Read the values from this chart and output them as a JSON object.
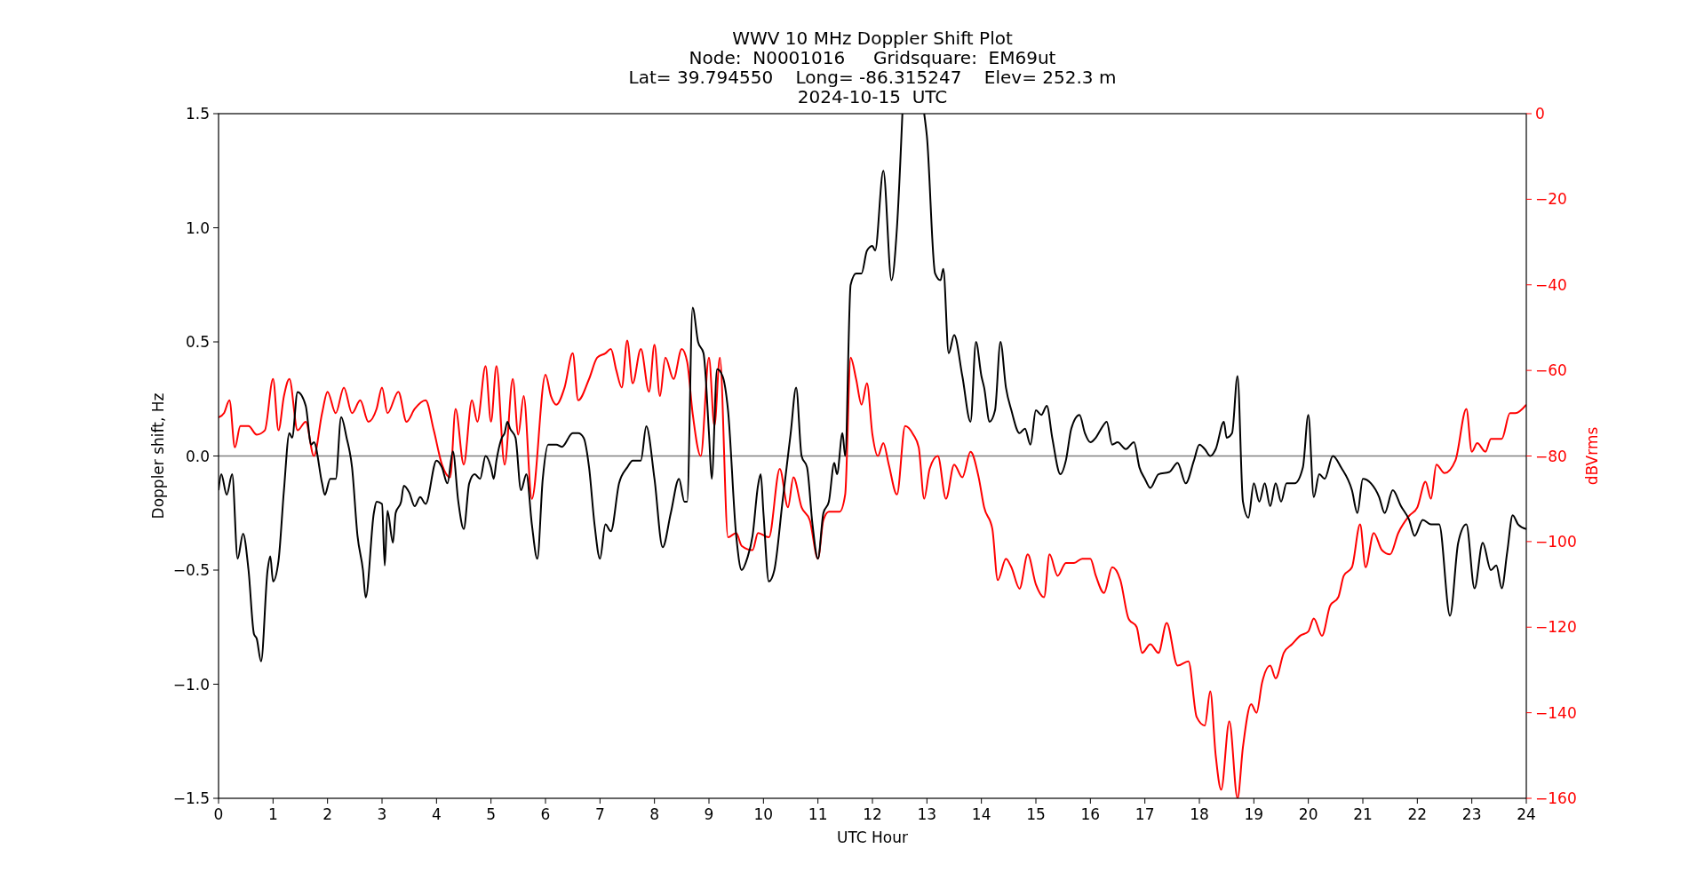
{
  "chart_data": {
    "type": "line",
    "title": "WWV 10 MHz Doppler Shift Plot",
    "subtitle": "Node:  N0001016     Gridsquare:  EM69ut\nLat= 39.794550    Long= -86.315247    Elev= 252.3 m\n2024-10-15  UTC",
    "xlabel": "UTC Hour",
    "ylabel": "Doppler shift, Hz",
    "y2label": "dBVrms",
    "xlim": [
      0,
      24
    ],
    "xticks": [
      0,
      1,
      2,
      3,
      4,
      5,
      6,
      7,
      8,
      9,
      10,
      11,
      12,
      13,
      14,
      15,
      16,
      17,
      18,
      19,
      20,
      21,
      22,
      23,
      24
    ],
    "ylim": [
      -1.5,
      1.5
    ],
    "yticks": [
      {
        "value": -1.5,
        "label": "−1.5"
      },
      {
        "value": -1.0,
        "label": "−1.0"
      },
      {
        "value": -0.5,
        "label": "−0.5"
      },
      {
        "value": 0,
        "label": "0.0"
      },
      {
        "value": 0.5,
        "label": "0.5"
      },
      {
        "value": 1.0,
        "label": "1.0"
      },
      {
        "value": 1.5,
        "label": "1.5"
      }
    ],
    "y2lim": [
      -160,
      0
    ],
    "y2ticks": [
      {
        "value": -160,
        "label": "−160"
      },
      {
        "value": -140,
        "label": "−140"
      },
      {
        "value": -120,
        "label": "−120"
      },
      {
        "value": -100,
        "label": "−100"
      },
      {
        "value": -80,
        "label": "−80"
      },
      {
        "value": -60,
        "label": "−60"
      },
      {
        "value": -40,
        "label": "−40"
      },
      {
        "value": -20,
        "label": "−20"
      },
      {
        "value": 0,
        "label": "0"
      }
    ],
    "grid": false,
    "marker": "none",
    "line_style": "solid",
    "ref_lines": [
      {
        "axis": "y",
        "value": 0,
        "color": "#808080"
      }
    ],
    "series": [
      {
        "color": "#000000",
        "x": [
          0,
          0.05,
          0.15,
          0.25,
          0.35,
          0.45,
          0.55,
          0.65,
          0.7,
          0.78,
          0.9,
          0.95,
          1.0,
          1.1,
          1.2,
          1.3,
          1.35,
          1.45,
          1.6,
          1.7,
          1.75,
          1.9,
          1.95,
          2.05,
          2.15,
          2.25,
          2.35,
          2.45,
          2.55,
          2.65,
          2.7,
          2.85,
          2.9,
          3.0,
          3.05,
          3.1,
          3.2,
          3.25,
          3.35,
          3.4,
          3.5,
          3.6,
          3.7,
          3.8,
          4.0,
          4.1,
          4.2,
          4.3,
          4.4,
          4.5,
          4.6,
          4.7,
          4.8,
          4.9,
          5.0,
          5.05,
          5.1,
          5.2,
          5.25,
          5.3,
          5.35,
          5.45,
          5.55,
          5.65,
          5.75,
          5.85,
          5.95,
          6.05,
          6.2,
          6.3,
          6.5,
          6.6,
          6.7,
          6.8,
          6.9,
          7.0,
          7.1,
          7.2,
          7.35,
          7.5,
          7.6,
          7.75,
          7.85,
          8.0,
          8.15,
          8.3,
          8.45,
          8.55,
          8.6,
          8.7,
          8.8,
          8.9,
          9.0,
          9.05,
          9.15,
          9.25,
          9.35,
          9.5,
          9.6,
          9.7,
          9.8,
          9.9,
          9.95,
          10.0,
          10.1,
          10.2,
          10.35,
          10.5,
          10.6,
          10.7,
          10.8,
          10.9,
          11.0,
          11.1,
          11.2,
          11.3,
          11.35,
          11.45,
          11.5,
          11.6,
          11.7,
          11.8,
          11.9,
          12.0,
          12.05,
          12.2,
          12.35,
          12.45,
          12.55,
          12.75,
          12.95,
          13.0,
          13.15,
          13.25,
          13.3,
          13.4,
          13.5,
          13.65,
          13.8,
          13.9,
          14.0,
          14.05,
          14.15,
          14.25,
          14.35,
          14.45,
          14.55,
          14.7,
          14.8,
          14.9,
          15.0,
          15.1,
          15.2,
          15.3,
          15.45,
          15.55,
          15.65,
          15.8,
          15.9,
          16.0,
          16.1,
          16.2,
          16.3,
          16.4,
          16.5,
          16.65,
          16.8,
          16.9,
          17.0,
          17.1,
          17.25,
          17.45,
          17.6,
          17.75,
          17.9,
          18.0,
          18.1,
          18.2,
          18.3,
          18.45,
          18.5,
          18.6,
          18.7,
          18.8,
          18.9,
          19.0,
          19.1,
          19.2,
          19.3,
          19.4,
          19.5,
          19.6,
          19.75,
          19.9,
          20.0,
          20.1,
          20.2,
          20.3,
          20.45,
          20.6,
          20.8,
          20.9,
          21.0,
          21.15,
          21.3,
          21.4,
          21.55,
          21.7,
          21.85,
          21.95,
          22.1,
          22.25,
          22.4,
          22.6,
          22.75,
          22.9,
          23.05,
          23.2,
          23.35,
          23.45,
          23.55,
          23.65,
          23.75,
          23.85,
          24.0
        ],
        "values": [
          -0.15,
          -0.08,
          -0.17,
          -0.08,
          -0.45,
          -0.34,
          -0.5,
          -0.78,
          -0.8,
          -0.9,
          -0.5,
          -0.44,
          -0.55,
          -0.46,
          -0.15,
          0.1,
          0.08,
          0.28,
          0.22,
          0.05,
          0.06,
          -0.12,
          -0.17,
          -0.1,
          -0.1,
          0.17,
          0.08,
          -0.05,
          -0.35,
          -0.5,
          -0.62,
          -0.25,
          -0.2,
          -0.21,
          -0.48,
          -0.24,
          -0.38,
          -0.25,
          -0.2,
          -0.13,
          -0.16,
          -0.22,
          -0.18,
          -0.21,
          -0.02,
          -0.05,
          -0.12,
          0.02,
          -0.2,
          -0.32,
          -0.12,
          -0.08,
          -0.1,
          0.0,
          -0.05,
          -0.1,
          -0.02,
          0.08,
          0.1,
          0.15,
          0.12,
          0.08,
          -0.15,
          -0.08,
          -0.3,
          -0.45,
          -0.1,
          0.05,
          0.05,
          0.04,
          0.1,
          0.1,
          0.08,
          -0.05,
          -0.3,
          -0.45,
          -0.3,
          -0.33,
          -0.12,
          -0.05,
          -0.02,
          -0.02,
          0.13,
          -0.1,
          -0.4,
          -0.25,
          -0.1,
          -0.2,
          -0.2,
          0.65,
          0.5,
          0.45,
          0.1,
          -0.1,
          0.38,
          0.35,
          0.2,
          -0.35,
          -0.5,
          -0.45,
          -0.35,
          -0.13,
          -0.08,
          -0.25,
          -0.55,
          -0.5,
          -0.2,
          0.1,
          0.3,
          0.0,
          -0.05,
          -0.3,
          -0.45,
          -0.25,
          -0.2,
          -0.03,
          -0.08,
          0.1,
          0.0,
          0.75,
          0.8,
          0.8,
          0.9,
          0.92,
          0.9,
          1.25,
          0.77,
          1.0,
          1.5,
          null,
          1.5,
          1.4,
          0.8,
          0.77,
          0.82,
          0.45,
          0.53,
          0.35,
          0.15,
          0.5,
          0.35,
          0.3,
          0.15,
          0.2,
          0.5,
          0.3,
          0.2,
          0.1,
          0.12,
          0.05,
          0.2,
          0.18,
          0.22,
          0.08,
          -0.08,
          -0.02,
          0.12,
          0.18,
          0.1,
          0.06,
          0.08,
          0.12,
          0.15,
          0.05,
          0.06,
          0.03,
          0.06,
          -0.05,
          -0.1,
          -0.14,
          -0.08,
          -0.07,
          -0.03,
          -0.12,
          -0.02,
          0.05,
          0.03,
          0.0,
          0.03,
          0.15,
          0.08,
          0.1,
          0.35,
          -0.2,
          -0.27,
          -0.12,
          -0.2,
          -0.12,
          -0.22,
          -0.12,
          -0.2,
          -0.12,
          -0.12,
          -0.05,
          0.18,
          -0.18,
          -0.08,
          -0.1,
          0.0,
          -0.05,
          -0.15,
          -0.25,
          -0.1,
          -0.12,
          -0.18,
          -0.25,
          -0.15,
          -0.22,
          -0.28,
          -0.35,
          -0.28,
          -0.3,
          -0.3,
          -0.7,
          -0.38,
          -0.3,
          -0.58,
          -0.38,
          -0.5,
          -0.48,
          -0.58,
          -0.42,
          -0.26,
          -0.3,
          -0.32
        ]
      },
      {
        "color": "#ff0000",
        "axis": "y2",
        "x": [
          0,
          0.1,
          0.2,
          0.3,
          0.4,
          0.55,
          0.7,
          0.85,
          1.0,
          1.1,
          1.2,
          1.3,
          1.45,
          1.6,
          1.75,
          1.9,
          2.0,
          2.15,
          2.3,
          2.45,
          2.6,
          2.75,
          2.9,
          3.0,
          3.1,
          3.3,
          3.45,
          3.6,
          3.8,
          3.95,
          4.1,
          4.25,
          4.35,
          4.5,
          4.65,
          4.75,
          4.9,
          5.0,
          5.1,
          5.25,
          5.4,
          5.5,
          5.6,
          5.75,
          6.0,
          6.1,
          6.2,
          6.35,
          6.5,
          6.6,
          6.8,
          6.95,
          7.1,
          7.2,
          7.3,
          7.4,
          7.5,
          7.6,
          7.75,
          7.9,
          8.0,
          8.1,
          8.2,
          8.35,
          8.5,
          8.6,
          8.7,
          8.85,
          9.0,
          9.1,
          9.2,
          9.35,
          9.5,
          9.6,
          9.8,
          9.9,
          10.1,
          10.3,
          10.45,
          10.55,
          10.7,
          10.85,
          11.0,
          11.1,
          11.2,
          11.4,
          11.5,
          11.6,
          11.7,
          11.8,
          11.9,
          12.0,
          12.1,
          12.2,
          12.3,
          12.45,
          12.6,
          12.75,
          12.85,
          12.95,
          13.05,
          13.2,
          13.35,
          13.5,
          13.65,
          13.8,
          13.95,
          14.05,
          14.2,
          14.3,
          14.45,
          14.55,
          14.7,
          14.85,
          15.0,
          15.15,
          15.25,
          15.4,
          15.55,
          15.7,
          15.85,
          16.0,
          16.1,
          16.25,
          16.4,
          16.55,
          16.7,
          16.85,
          16.95,
          17.1,
          17.25,
          17.4,
          17.6,
          17.8,
          17.95,
          18.1,
          18.2,
          18.3,
          18.4,
          18.55,
          18.7,
          18.8,
          18.95,
          19.05,
          19.15,
          19.3,
          19.4,
          19.55,
          19.7,
          19.85,
          20.0,
          20.1,
          20.25,
          20.4,
          20.55,
          20.65,
          20.8,
          20.95,
          21.05,
          21.2,
          21.35,
          21.5,
          21.65,
          21.85,
          22.0,
          22.15,
          22.25,
          22.35,
          22.5,
          22.7,
          22.9,
          23.0,
          23.1,
          23.25,
          23.35,
          23.55,
          23.7,
          23.8,
          24.0
        ],
        "values": [
          -71,
          -70,
          -67,
          -78,
          -73,
          -73,
          -75,
          -74,
          -62,
          -74,
          -66,
          -62,
          -74,
          -72,
          -80,
          -70,
          -65,
          -70,
          -64,
          -70,
          -67,
          -72,
          -69,
          -64,
          -70,
          -65,
          -72,
          -69,
          -67,
          -74,
          -82,
          -85,
          -69,
          -82,
          -67,
          -72,
          -59,
          -72,
          -59,
          -82,
          -62,
          -75,
          -66,
          -90,
          -61,
          -66,
          -68,
          -64,
          -56,
          -67,
          -62,
          -57,
          -56,
          -55,
          -60,
          -64,
          -53,
          -63,
          -55,
          -65,
          -54,
          -66,
          -57,
          -62,
          -55,
          -58,
          -70,
          -80,
          -57,
          -73,
          -57,
          -99,
          -98,
          -101,
          -102,
          -98,
          -99,
          -83,
          -92,
          -85,
          -92,
          -95,
          -104,
          -95,
          -93,
          -93,
          -89,
          -57,
          -62,
          -68,
          -63,
          -75,
          -80,
          -77,
          -82,
          -89,
          -73,
          -75,
          -78,
          -90,
          -83,
          -80,
          -90,
          -82,
          -85,
          -79,
          -85,
          -92,
          -97,
          -109,
          -104,
          -106,
          -111,
          -103,
          -110,
          -113,
          -103,
          -108,
          -105,
          -105,
          -104,
          -104,
          -108,
          -112,
          -106,
          -109,
          -118,
          -120,
          -126,
          -124,
          -126,
          -119,
          -129,
          -128,
          -141,
          -143,
          -135,
          -150,
          -158,
          -142,
          -160,
          -148,
          -138,
          -140,
          -133,
          -129,
          -132,
          -126,
          -124,
          -122,
          -121,
          -118,
          -122,
          -115,
          -113,
          -108,
          -106,
          -96,
          -106,
          -98,
          -102,
          -103,
          -98,
          -94,
          -92,
          -86,
          -90,
          -82,
          -84,
          -81,
          -69,
          -79,
          -77,
          -79,
          -76,
          -76,
          -70,
          -70,
          -68
        ]
      }
    ]
  }
}
